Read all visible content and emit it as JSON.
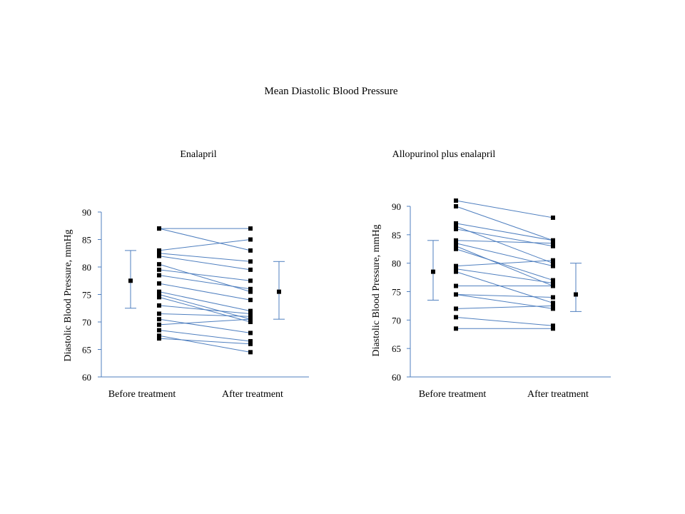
{
  "page": {
    "title": "Mean Diastolic Blood Pressure"
  },
  "colors": {
    "line": "#4f7fbf",
    "marker": "#000000",
    "axis": "#4f7fbf"
  },
  "chart_data": [
    {
      "type": "line",
      "title": "Enalapril",
      "ylabel": "Diastolic Blood Pressure, mmHg",
      "xlabel": "",
      "categories": [
        "Before treatment",
        "After treatment"
      ],
      "ylim": [
        60,
        90
      ],
      "yticks": [
        60,
        65,
        70,
        75,
        80,
        85,
        90
      ],
      "grid": false,
      "pairs": [
        [
          87.0,
          87.0
        ],
        [
          87.0,
          83.0
        ],
        [
          83.0,
          85.0
        ],
        [
          82.5,
          81.0
        ],
        [
          82.0,
          79.5
        ],
        [
          80.5,
          75.5
        ],
        [
          79.5,
          77.5
        ],
        [
          78.5,
          76.0
        ],
        [
          77.0,
          74.0
        ],
        [
          75.5,
          72.0
        ],
        [
          75.0,
          70.5
        ],
        [
          74.5,
          70.0
        ],
        [
          73.0,
          71.5
        ],
        [
          71.5,
          71.0
        ],
        [
          70.5,
          68.0
        ],
        [
          69.5,
          70.5
        ],
        [
          68.5,
          66.5
        ],
        [
          67.5,
          64.5
        ],
        [
          67.0,
          66.0
        ]
      ],
      "before_summary": {
        "mean": 77.5,
        "low": 72.5,
        "high": 83.0
      },
      "after_summary": {
        "mean": 75.5,
        "low": 70.5,
        "high": 81.0
      }
    },
    {
      "type": "line",
      "title": "Allopurinol plus enalapril",
      "ylabel": "Diastolic Blood Pressure, mmHg",
      "xlabel": "",
      "categories": [
        "Before treatment",
        "After treatment"
      ],
      "ylim": [
        60,
        90
      ],
      "yticks": [
        60,
        65,
        70,
        75,
        80,
        85,
        90
      ],
      "grid": false,
      "pairs": [
        [
          91.0,
          88.0
        ],
        [
          90.0,
          84.0
        ],
        [
          87.0,
          84.0
        ],
        [
          86.5,
          80.0
        ],
        [
          86.0,
          83.0
        ],
        [
          84.0,
          83.5
        ],
        [
          83.5,
          79.5
        ],
        [
          83.0,
          76.0
        ],
        [
          82.5,
          77.0
        ],
        [
          79.5,
          80.5
        ],
        [
          79.0,
          76.5
        ],
        [
          78.5,
          73.0
        ],
        [
          76.0,
          76.0
        ],
        [
          74.5,
          74.0
        ],
        [
          74.5,
          72.0
        ],
        [
          72.0,
          72.5
        ],
        [
          70.5,
          69.0
        ],
        [
          68.5,
          68.5
        ]
      ],
      "before_summary": {
        "mean": 78.5,
        "low": 73.5,
        "high": 84.0
      },
      "after_summary": {
        "mean": 74.5,
        "low": 71.5,
        "high": 80.0
      }
    }
  ]
}
